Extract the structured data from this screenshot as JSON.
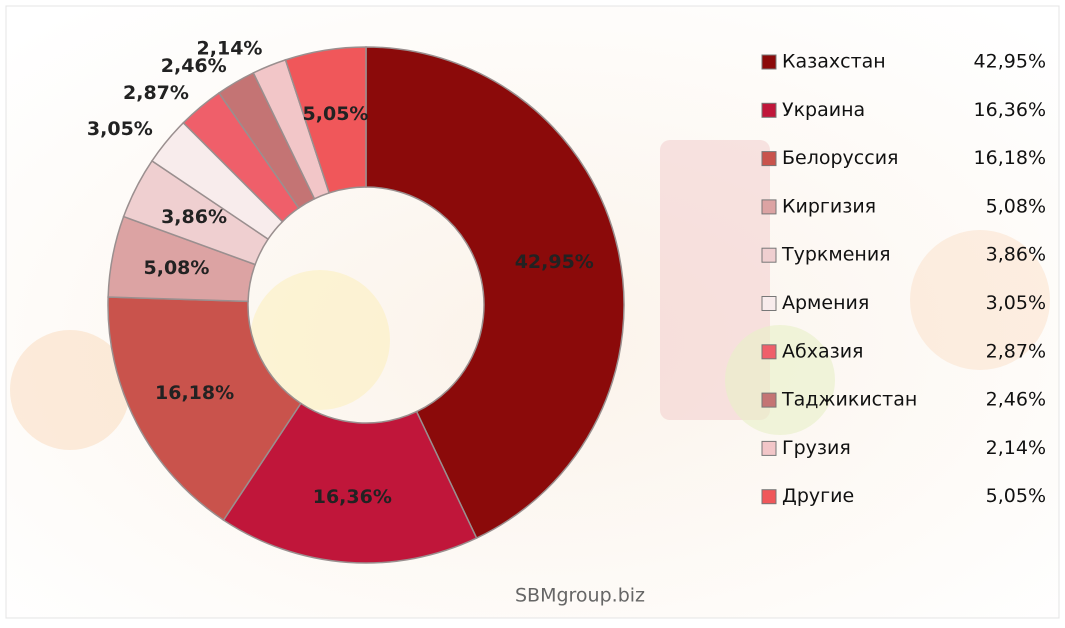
{
  "chart_data": {
    "type": "pie",
    "donut": true,
    "categories": [
      "Казахстан",
      "Украина",
      "Белоруссия",
      "Киргизия",
      "Туркмения",
      "Армения",
      "Абхазия",
      "Таджикистан",
      "Грузия",
      "Другие"
    ],
    "values": [
      42.95,
      16.36,
      16.18,
      5.08,
      3.86,
      3.05,
      2.87,
      2.46,
      2.14,
      5.05
    ],
    "value_labels": [
      "42,95%",
      "16,36%",
      "16,18%",
      "5,08%",
      "3,86%",
      "3,05%",
      "2,87%",
      "2,46%",
      "2,14%",
      "5,05%"
    ],
    "colors": [
      "#8b0a0a",
      "#c0163a",
      "#c9534c",
      "#dca3a3",
      "#efcfd0",
      "#f8ecec",
      "#ef5f6a",
      "#c47474",
      "#f2c6c8",
      "#f0575a"
    ],
    "legend": "right",
    "source": "SBMgroup.biz"
  }
}
